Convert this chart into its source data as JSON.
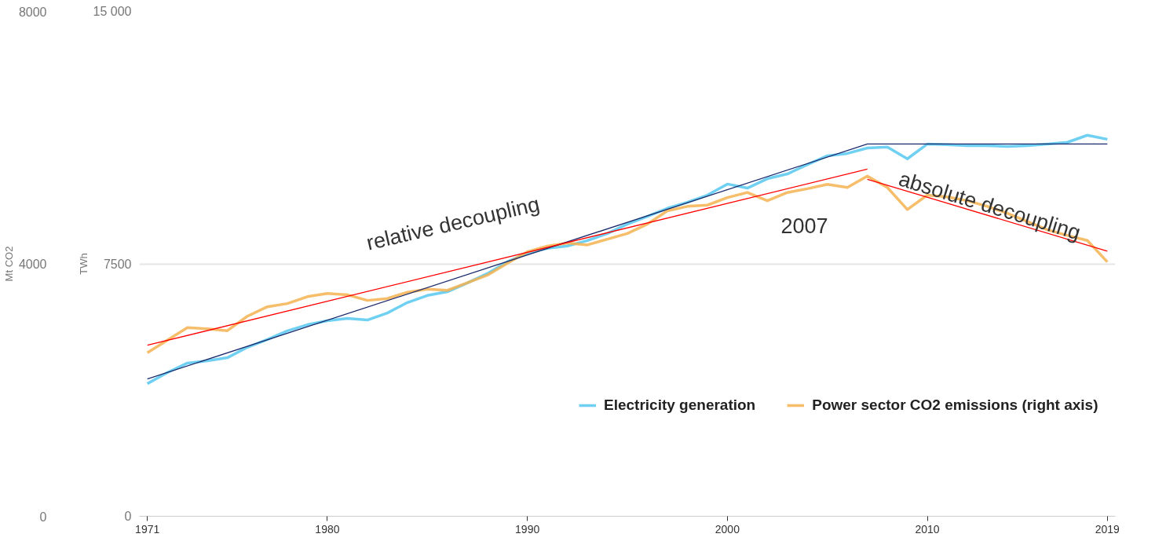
{
  "chart_data": {
    "type": "line",
    "xlabel": null,
    "ylabel": "TWh",
    "y2label": "Mt CO2",
    "x": [
      1971,
      1972,
      1973,
      1974,
      1975,
      1976,
      1977,
      1978,
      1979,
      1980,
      1981,
      1982,
      1983,
      1984,
      1985,
      1986,
      1987,
      1988,
      1989,
      1990,
      1991,
      1992,
      1993,
      1994,
      1995,
      1996,
      1997,
      1998,
      1999,
      2000,
      2001,
      2002,
      2003,
      2004,
      2005,
      2006,
      2007,
      2008,
      2009,
      2010,
      2011,
      2012,
      2013,
      2014,
      2015,
      2016,
      2017,
      2018,
      2019
    ],
    "series": [
      {
        "name": "Electricity generation",
        "color": "#56c8f0",
        "values": [
          3940,
          4270,
          4550,
          4620,
          4710,
          5020,
          5250,
          5510,
          5690,
          5810,
          5880,
          5830,
          6040,
          6350,
          6560,
          6670,
          6930,
          7210,
          7560,
          7820,
          7960,
          8030,
          8190,
          8400,
          8680,
          8910,
          9150,
          9330,
          9540,
          9870,
          9750,
          10030,
          10170,
          10450,
          10710,
          10780,
          10940,
          10970,
          10620,
          11060,
          11040,
          11010,
          11010,
          10990,
          11010,
          11060,
          11110,
          11320,
          11200
        ]
      },
      {
        "name": "Power sector CO2 emissions (right axis)",
        "color": "#f4b350",
        "axis": "y2",
        "values": [
          2590,
          2790,
          2990,
          2970,
          2940,
          3170,
          3320,
          3370,
          3480,
          3530,
          3510,
          3420,
          3450,
          3550,
          3600,
          3580,
          3700,
          3820,
          4010,
          4190,
          4280,
          4330,
          4300,
          4390,
          4480,
          4630,
          4840,
          4910,
          4930,
          5050,
          5130,
          5000,
          5130,
          5190,
          5260,
          5210,
          5390,
          5210,
          4860,
          5090,
          5060,
          5000,
          4910,
          4800,
          4670,
          4540,
          4450,
          4370,
          4030
        ]
      },
      {
        "type": "line",
        "color": "#1a2a6c",
        "x": [
          1971,
          2007,
          2019
        ],
        "values": [
          4080,
          11060,
          11060
        ]
      },
      {
        "type": "line",
        "color": "#ff0000",
        "axis": "y2",
        "x": [
          1971,
          2007
        ],
        "values": [
          2710,
          5500
        ]
      },
      {
        "type": "line",
        "color": "#ff0000",
        "axis": "y2",
        "x": [
          2007,
          2019
        ],
        "values": [
          5340,
          4200
        ]
      }
    ],
    "xlim": [
      1970.6,
      2019.4
    ],
    "xticks": [
      1971,
      1980,
      1990,
      2000,
      2010,
      2019
    ],
    "ylim": [
      0,
      15000
    ],
    "yticks": [
      0,
      {
        "value": 7500,
        "label": "7500"
      },
      {
        "value": 15000,
        "label": "15 000"
      }
    ],
    "y2lim": [
      0,
      8000
    ],
    "y2ticks": [
      0,
      4000,
      8000
    ],
    "grid": "y",
    "legend": "bottom right",
    "annotations": [
      "relative decoupling",
      "2007",
      "absolute decoupling"
    ]
  }
}
